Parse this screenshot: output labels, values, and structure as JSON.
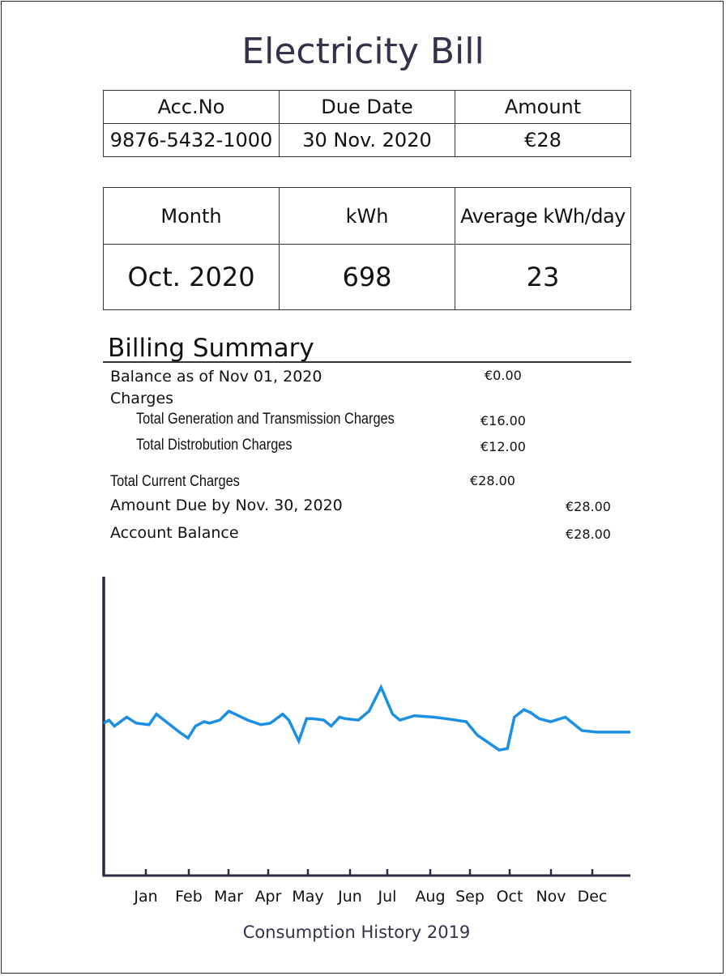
{
  "bill": {
    "title": "Electricity Bill"
  },
  "account_table": {
    "headers": [
      "Acc.No",
      "Due Date",
      "Amount"
    ],
    "values": [
      "9876-5432-1000",
      "30 Nov. 2020",
      "€28"
    ]
  },
  "usage_table": {
    "headers": [
      "Month",
      "kWh",
      "Average kWh/day"
    ],
    "values": [
      "Oct. 2020",
      "698",
      "23"
    ]
  },
  "billing_summary": {
    "heading": "Billing Summary",
    "balance_label": "Balance as of Nov 01, 2020",
    "balance_amount": "€0.00",
    "charges_label": "Charges",
    "generation_label": "Total Generation and Transmission Charges",
    "generation_amount": "€16.00",
    "distribution_label": "Total Distrobution Charges",
    "distribution_amount": "€12.00",
    "current_label": "Total Current Charges",
    "current_amount": "€28.00",
    "due_label": "Amount Due by Nov. 30, 2020",
    "due_amount": "€28.00",
    "account_balance_label": "Account Balance",
    "account_balance_amount": "€28.00"
  },
  "chart_data": {
    "type": "line",
    "title": "Consumption History 2019",
    "xlabel": "",
    "ylabel": "",
    "categories": [
      "Jan",
      "Feb",
      "Mar",
      "Apr",
      "May",
      "Jun",
      "Jul",
      "Aug",
      "Sep",
      "Oct",
      "Nov",
      "Dec"
    ],
    "x_range": [
      0,
      12.8
    ],
    "ylim": [
      0,
      100
    ],
    "grid": false,
    "line_color": "#1a8fe3",
    "axis_color": "#2c2a40",
    "series": [
      {
        "x": [
          0.0,
          0.13,
          0.26,
          0.56,
          0.79,
          1.1,
          1.28,
          1.84,
          2.05,
          2.23,
          2.44,
          2.57,
          2.82,
          3.04,
          3.5,
          3.82,
          4.05,
          4.35,
          4.5,
          4.74,
          4.93,
          5.08,
          5.35,
          5.53,
          5.73,
          5.87,
          6.19,
          6.45,
          6.74,
          7.02,
          7.2,
          7.55,
          8.01,
          8.32,
          8.81,
          9.08,
          9.61,
          9.81,
          9.98,
          10.21,
          10.38,
          10.58,
          10.86,
          11.22,
          11.62,
          11.98,
          12.8
        ],
        "y": [
          51,
          52,
          50,
          53,
          51,
          50.5,
          54,
          48,
          46,
          50,
          51.5,
          51,
          52,
          55,
          52,
          50.5,
          51,
          54,
          52,
          45,
          52.5,
          52.5,
          52,
          50,
          53,
          52.5,
          52,
          55,
          63,
          54,
          52,
          53.5,
          53,
          52.5,
          51.5,
          47,
          42,
          42.5,
          53,
          55.5,
          54.5,
          52.5,
          51.5,
          53,
          48.5,
          48,
          48
        ]
      }
    ]
  }
}
